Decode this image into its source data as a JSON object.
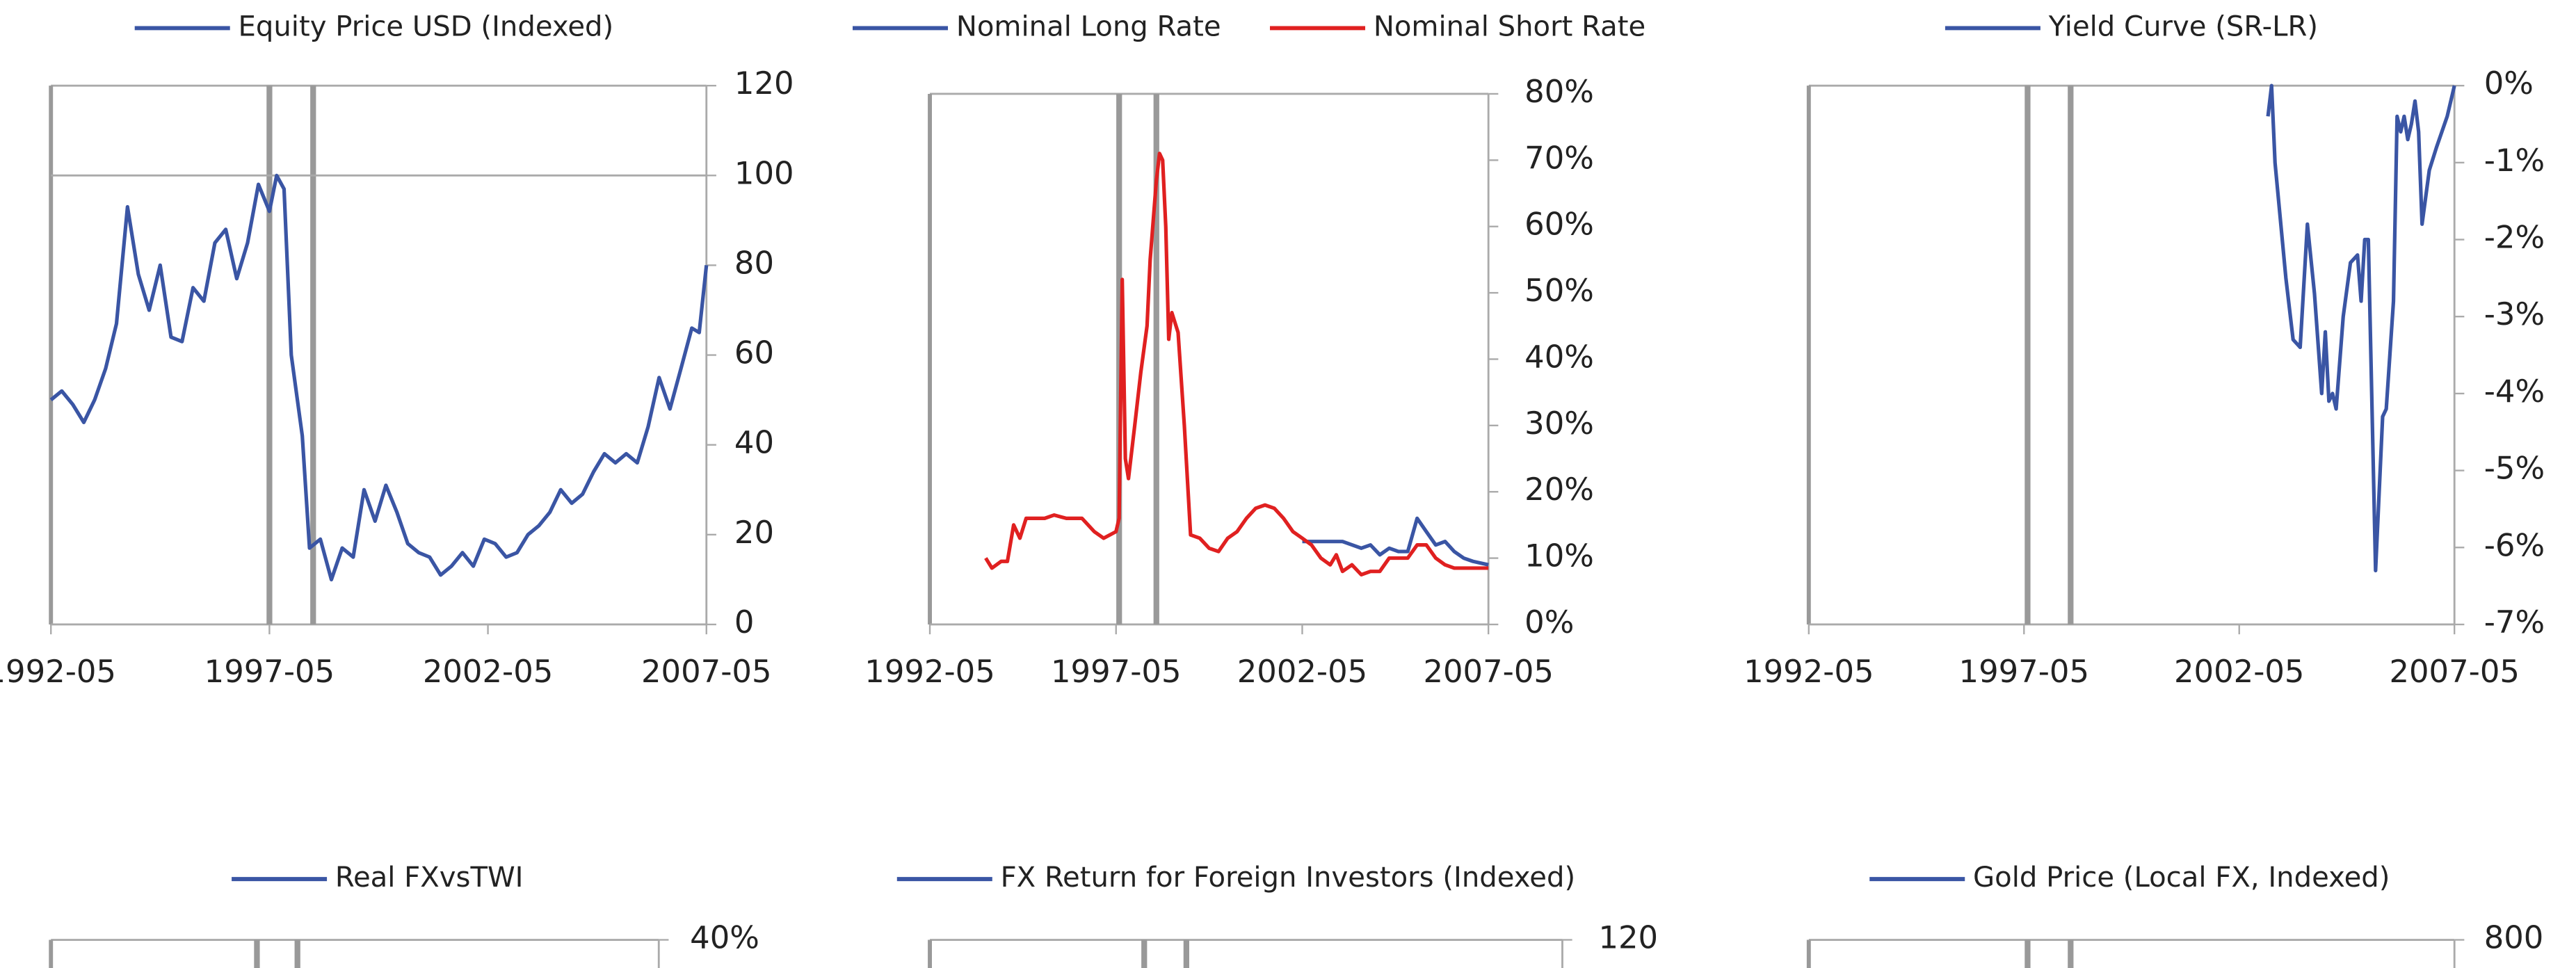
{
  "chart_data": [
    {
      "type": "line",
      "xlim": [
        "1992-05",
        "2007-05"
      ],
      "xticks": [
        "1992-05",
        "1997-05",
        "2002-05",
        "2007-05"
      ],
      "ylim": [
        0,
        120
      ],
      "yticks": [
        0,
        20,
        40,
        60,
        80,
        100,
        120
      ],
      "reference_line": 100,
      "event_lines": [
        "1997-05",
        "1998-05"
      ],
      "series": [
        {
          "name": "Equity Price USD (Indexed)",
          "color": "#3a55a4",
          "x": [
            "1992-05",
            "1992-08",
            "1992-11",
            "1993-02",
            "1993-05",
            "1993-08",
            "1993-11",
            "1994-02",
            "1994-05",
            "1994-08",
            "1994-11",
            "1995-02",
            "1995-05",
            "1995-08",
            "1995-11",
            "1996-02",
            "1996-05",
            "1996-08",
            "1996-11",
            "1997-02",
            "1997-05",
            "1997-07",
            "1997-09",
            "1997-11",
            "1998-02",
            "1998-04",
            "1998-07",
            "1998-10",
            "1999-01",
            "1999-04",
            "1999-07",
            "1999-10",
            "2000-01",
            "2000-04",
            "2000-07",
            "2000-10",
            "2001-01",
            "2001-04",
            "2001-07",
            "2001-10",
            "2002-01",
            "2002-04",
            "2002-07",
            "2002-10",
            "2003-01",
            "2003-04",
            "2003-07",
            "2003-10",
            "2004-01",
            "2004-04",
            "2004-07",
            "2004-10",
            "2005-01",
            "2005-04",
            "2005-07",
            "2005-10",
            "2006-01",
            "2006-04",
            "2006-07",
            "2006-10",
            "2007-01",
            "2007-03",
            "2007-05"
          ],
          "values": [
            50,
            52,
            49,
            45,
            50,
            57,
            67,
            93,
            78,
            70,
            80,
            64,
            63,
            75,
            72,
            85,
            88,
            77,
            85,
            98,
            92,
            100,
            97,
            60,
            42,
            17,
            19,
            10,
            17,
            15,
            30,
            23,
            31,
            25,
            18,
            16,
            15,
            11,
            13,
            16,
            13,
            19,
            18,
            15,
            16,
            20,
            22,
            25,
            30,
            27,
            29,
            34,
            38,
            36,
            38,
            36,
            44,
            55,
            48,
            57,
            66,
            65,
            80
          ]
        }
      ]
    },
    {
      "type": "line",
      "xlim": [
        "1992-05",
        "2007-05"
      ],
      "xticks": [
        "1992-05",
        "1997-05",
        "2002-05",
        "2007-05"
      ],
      "ylim": [
        0,
        80
      ],
      "yticks": [
        {
          "value": 0,
          "label": "0%"
        },
        {
          "value": 10,
          "label": "10%"
        },
        {
          "value": 20,
          "label": "20%"
        },
        {
          "value": 30,
          "label": "30%"
        },
        {
          "value": 40,
          "label": "40%"
        },
        {
          "value": 50,
          "label": "50%"
        },
        {
          "value": 60,
          "label": "60%"
        },
        {
          "value": 70,
          "label": "70%"
        },
        {
          "value": 80,
          "label": "80%"
        }
      ],
      "event_lines": [
        "1997-06",
        "1998-06"
      ],
      "series": [
        {
          "name": "Nominal Long Rate",
          "color": "#3a55a4",
          "x": [
            "2002-05",
            "2003-01",
            "2003-06",
            "2003-12",
            "2004-03",
            "2004-06",
            "2004-09",
            "2004-12",
            "2005-03",
            "2005-06",
            "2005-09",
            "2005-12",
            "2006-03",
            "2006-06",
            "2006-09",
            "2006-12",
            "2007-05"
          ],
          "values": [
            12.5,
            12.5,
            12.5,
            11.5,
            12,
            10.5,
            11.5,
            11,
            11,
            16,
            14,
            12,
            12.5,
            11,
            10,
            9.5,
            9
          ]
        },
        {
          "name": "Nominal Short Rate",
          "color": "#e02020",
          "x": [
            "1993-11",
            "1994-01",
            "1994-04",
            "1994-06",
            "1994-08",
            "1994-10",
            "1994-12",
            "1995-06",
            "1995-09",
            "1996-01",
            "1996-06",
            "1996-10",
            "1997-01",
            "1997-05",
            "1997-06",
            "1997-07",
            "1997-08",
            "1997-09",
            "1997-11",
            "1998-01",
            "1998-03",
            "1998-04",
            "1998-06",
            "1998-07",
            "1998-08",
            "1998-09",
            "1998-10",
            "1998-11",
            "1999-01",
            "1999-03",
            "1999-05",
            "1999-08",
            "1999-11",
            "2000-02",
            "2000-05",
            "2000-08",
            "2000-11",
            "2001-02",
            "2001-05",
            "2001-08",
            "2001-11",
            "2002-02",
            "2002-05",
            "2002-08",
            "2002-11",
            "2003-02",
            "2003-04",
            "2003-06",
            "2003-09",
            "2003-12",
            "2004-03",
            "2004-06",
            "2004-09",
            "2004-12",
            "2005-03",
            "2005-06",
            "2005-09",
            "2005-12",
            "2006-03",
            "2006-06",
            "2006-09",
            "2007-05"
          ],
          "values": [
            10,
            8.5,
            9.5,
            9.5,
            15,
            13,
            16,
            16,
            16.5,
            16,
            16,
            14,
            13,
            14,
            16,
            52,
            25,
            22,
            30,
            38,
            45,
            55,
            67,
            71,
            70,
            60,
            43,
            47,
            44,
            30,
            13.5,
            13,
            11.5,
            11,
            13,
            14,
            16,
            17.5,
            18,
            17.5,
            16,
            14,
            13,
            12,
            10,
            9,
            10.5,
            8,
            9,
            7.5,
            8,
            8,
            10,
            10,
            10,
            12,
            12,
            10,
            9,
            8.5,
            8.5,
            8.5
          ]
        }
      ]
    },
    {
      "type": "line",
      "xlim": [
        "1992-05",
        "2007-05"
      ],
      "xticks": [
        "1992-05",
        "1997-05",
        "2002-05",
        "2007-05"
      ],
      "ylim": [
        -7,
        0
      ],
      "yticks": [
        {
          "value": -7,
          "label": "-7%"
        },
        {
          "value": -6,
          "label": "-6%"
        },
        {
          "value": -5,
          "label": "-5%"
        },
        {
          "value": -4,
          "label": "-4%"
        },
        {
          "value": -3,
          "label": "-3%"
        },
        {
          "value": -2,
          "label": "-2%"
        },
        {
          "value": -1,
          "label": "-1%"
        },
        {
          "value": 0,
          "label": "0%"
        }
      ],
      "event_lines": [
        "1997-06",
        "1998-06"
      ],
      "series": [
        {
          "name": "Yield Curve (SR-LR)",
          "color": "#3a55a4",
          "x": [
            "2003-01",
            "2003-02",
            "2003-03",
            "2003-06",
            "2003-08",
            "2003-10",
            "2003-12",
            "2004-02",
            "2004-04",
            "2004-05",
            "2004-06",
            "2004-07",
            "2004-08",
            "2004-10",
            "2004-12",
            "2005-02",
            "2005-03",
            "2005-04",
            "2005-05",
            "2005-07",
            "2005-09",
            "2005-10",
            "2005-12",
            "2006-01",
            "2006-02",
            "2006-03",
            "2006-04",
            "2006-05",
            "2006-06",
            "2006-07",
            "2006-08",
            "2006-10",
            "2006-12",
            "2007-03",
            "2007-05"
          ],
          "values": [
            -0.4,
            0,
            -1,
            -2.5,
            -3.3,
            -3.4,
            -1.8,
            -2.7,
            -4,
            -3.2,
            -4.1,
            -4,
            -4.2,
            -3,
            -2.3,
            -2.2,
            -2.8,
            -2,
            -2,
            -6.3,
            -4.3,
            -4.2,
            -2.8,
            -0.4,
            -0.6,
            -0.4,
            -0.7,
            -0.5,
            -0.2,
            -0.6,
            -1.8,
            -1.1,
            -0.8,
            -0.4,
            0
          ]
        }
      ]
    },
    {
      "type": "line",
      "xlim": [
        "1992-05",
        "2007-05"
      ],
      "yticks": [
        {
          "value": 40,
          "label": "40%"
        }
      ],
      "event_lines": [
        "1997-06",
        "1998-06"
      ],
      "series": [
        {
          "name": "Real FXvsTWI",
          "color": "#3a55a4"
        }
      ]
    },
    {
      "type": "line",
      "xlim": [
        "1992-05",
        "2007-05"
      ],
      "yticks": [
        120
      ],
      "event_lines": [
        "1997-06",
        "1998-06"
      ],
      "series": [
        {
          "name": "FX Return for Foreign Investors (Indexed)",
          "color": "#3a55a4"
        }
      ]
    },
    {
      "type": "line",
      "xlim": [
        "1992-05",
        "2007-05"
      ],
      "yticks": [
        800
      ],
      "event_lines": [
        "1997-06",
        "1998-06"
      ],
      "series": [
        {
          "name": "Gold Price (Local FX, Indexed)",
          "color": "#3a55a4"
        }
      ]
    }
  ]
}
